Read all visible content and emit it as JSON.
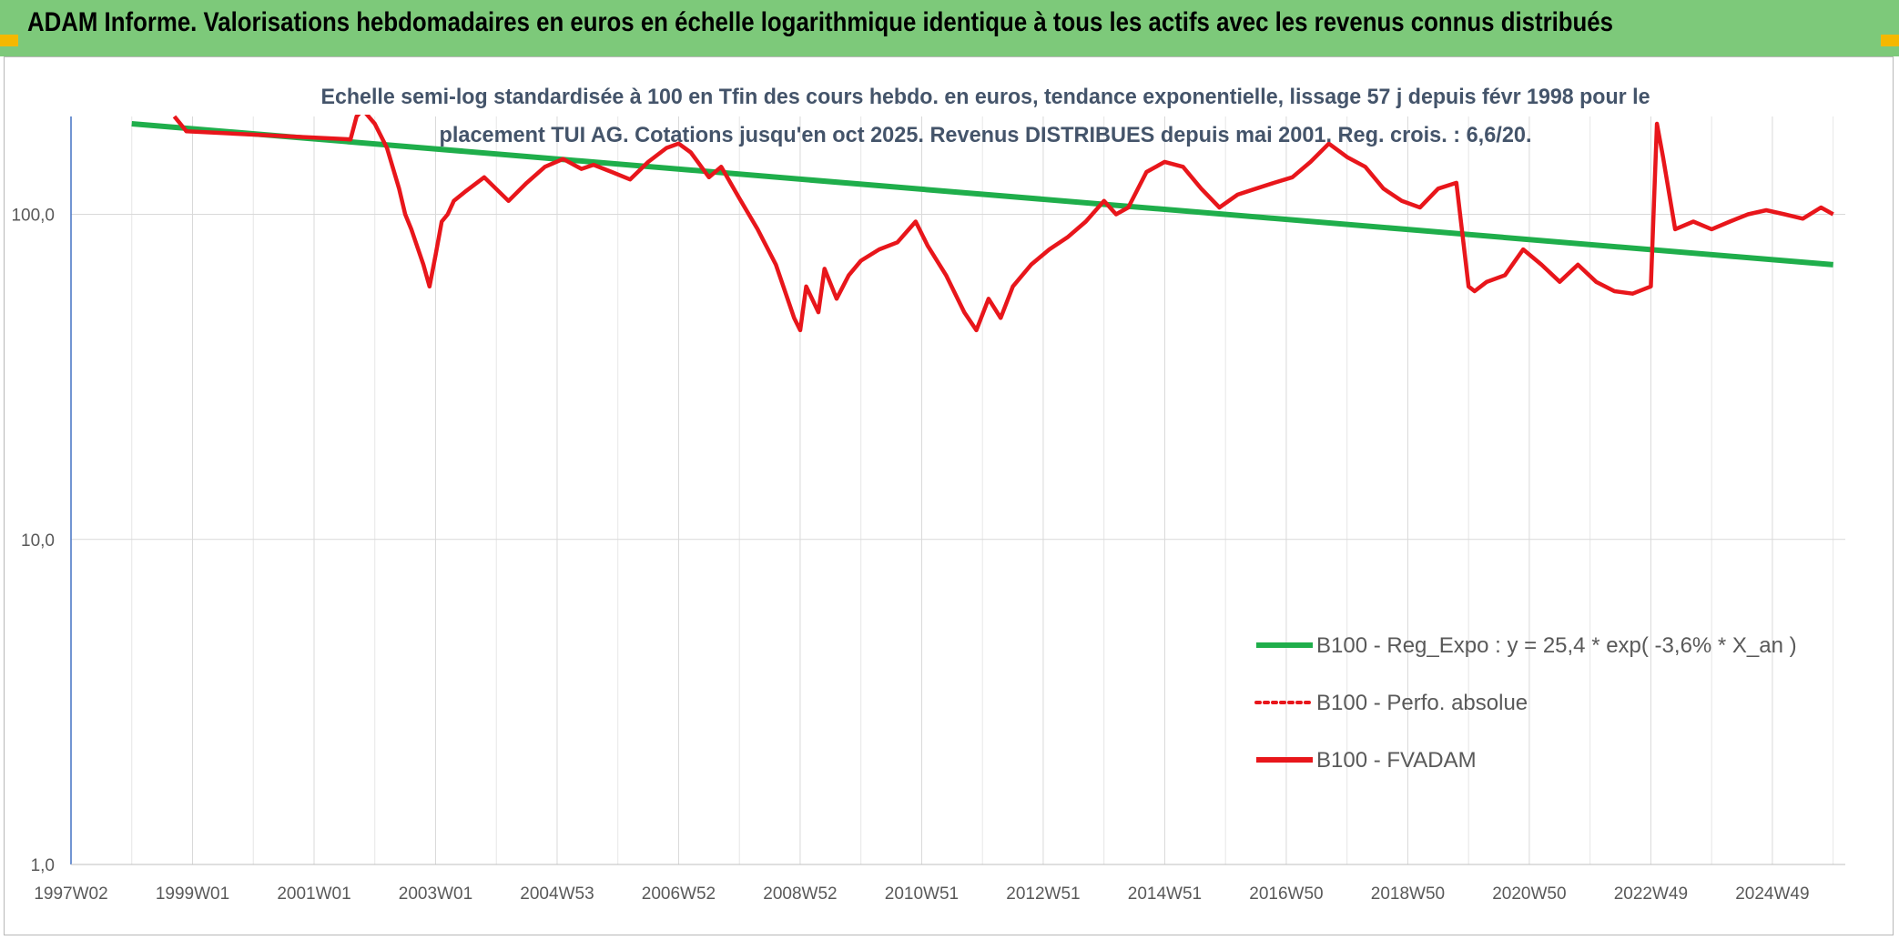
{
  "banner": {
    "title": "ADAM Informe. Valorisations hebdomadaires en euros en échelle logarithmique identique à tous les actifs avec les revenus connus distribués",
    "color": "#7dc97a"
  },
  "chart_data": {
    "type": "line",
    "title_line1": "Echelle semi-log standardisée à 100 en Tfin des cours hebdo. en euros, tendance exponentielle, lissage 57 j depuis févr 1998 pour le",
    "title_line2": "placement TUI AG. Cotations jusqu'en oct 2025. Revenus DISTRIBUES depuis mai 2001. Reg. crois. : 6,6/20.",
    "y_scale": "log",
    "ylim": [
      1,
      200
    ],
    "y_ticks": [
      "1,0",
      "10,0",
      "100,0"
    ],
    "x_ticks": [
      "1997W02",
      "1999W01",
      "2001W01",
      "2003W01",
      "2004W53",
      "2006W52",
      "2008W52",
      "2010W51",
      "2012W51",
      "2014W51",
      "2016W50",
      "2018W50",
      "2020W50",
      "2022W49",
      "2024W49"
    ],
    "xlim": [
      1997.0,
      2026.2
    ],
    "grid": "vertical and horizontal",
    "legend_position": "bottom-right",
    "legend": [
      {
        "label": "B100 - Reg_Expo : y = 25,4 * exp( -3,6% *  X_an )",
        "color": "#1fae4b",
        "style": "solid"
      },
      {
        "label": "B100 - Perfo. absolue",
        "color": "#e8161b",
        "style": "dotted"
      },
      {
        "label": "B100 - FVADAM",
        "color": "#e8161b",
        "style": "solid"
      }
    ],
    "series": [
      {
        "name": "B100 - Reg_Expo : y = 25,4 * exp( -3,6% *  X_an )",
        "color": "#1fae4b",
        "x": [
          1998.0,
          2026.0
        ],
        "y": [
          190,
          70
        ]
      },
      {
        "name": "B100 - FVADAM",
        "color": "#e8161b",
        "x": [
          1998.7,
          1998.8,
          1998.9,
          2001.6,
          2001.7,
          2001.8,
          2002.0,
          2002.2,
          2002.4,
          2002.5,
          2002.6,
          2002.8,
          2002.9,
          2003.0,
          2003.1,
          2003.2,
          2003.3,
          2003.5,
          2003.8,
          2004.2,
          2004.5,
          2004.8,
          2005.1,
          2005.4,
          2005.6,
          2005.9,
          2006.2,
          2006.5,
          2006.8,
          2007.0,
          2007.2,
          2007.5,
          2007.7,
          2008.0,
          2008.3,
          2008.6,
          2008.9,
          2009.0,
          2009.1,
          2009.3,
          2009.4,
          2009.6,
          2009.8,
          2010.0,
          2010.3,
          2010.6,
          2010.9,
          2011.1,
          2011.4,
          2011.7,
          2011.9,
          2012.1,
          2012.3,
          2012.5,
          2012.8,
          2013.1,
          2013.4,
          2013.7,
          2014.0,
          2014.2,
          2014.4,
          2014.7,
          2015.0,
          2015.3,
          2015.6,
          2015.9,
          2016.2,
          2016.5,
          2016.8,
          2017.1,
          2017.4,
          2017.7,
          2018.0,
          2018.3,
          2018.6,
          2018.9,
          2019.2,
          2019.5,
          2019.8,
          2020.0,
          2020.1,
          2020.3,
          2020.6,
          2020.9,
          2021.2,
          2021.5,
          2021.8,
          2022.1,
          2022.4,
          2022.7,
          2023.0,
          2023.1,
          2023.2,
          2023.4,
          2023.7,
          2024.0,
          2024.3,
          2024.6,
          2024.9,
          2025.2,
          2025.5,
          2025.8,
          2026.0
        ],
        "y": [
          200,
          190,
          180,
          170,
          200,
          210,
          190,
          160,
          120,
          100,
          90,
          70,
          60,
          75,
          95,
          100,
          110,
          118,
          130,
          110,
          125,
          140,
          148,
          138,
          142,
          135,
          128,
          145,
          160,
          165,
          155,
          130,
          140,
          112,
          90,
          70,
          48,
          44,
          60,
          50,
          68,
          55,
          65,
          72,
          78,
          82,
          95,
          80,
          65,
          50,
          44,
          55,
          48,
          60,
          70,
          78,
          85,
          95,
          110,
          100,
          105,
          135,
          145,
          140,
          120,
          105,
          115,
          120,
          125,
          130,
          145,
          165,
          150,
          140,
          120,
          110,
          105,
          120,
          125,
          60,
          58,
          62,
          65,
          78,
          70,
          62,
          70,
          62,
          58,
          57,
          60,
          190,
          150,
          90,
          95,
          90,
          95,
          100,
          103,
          100,
          97,
          105,
          100
        ]
      }
    ]
  }
}
